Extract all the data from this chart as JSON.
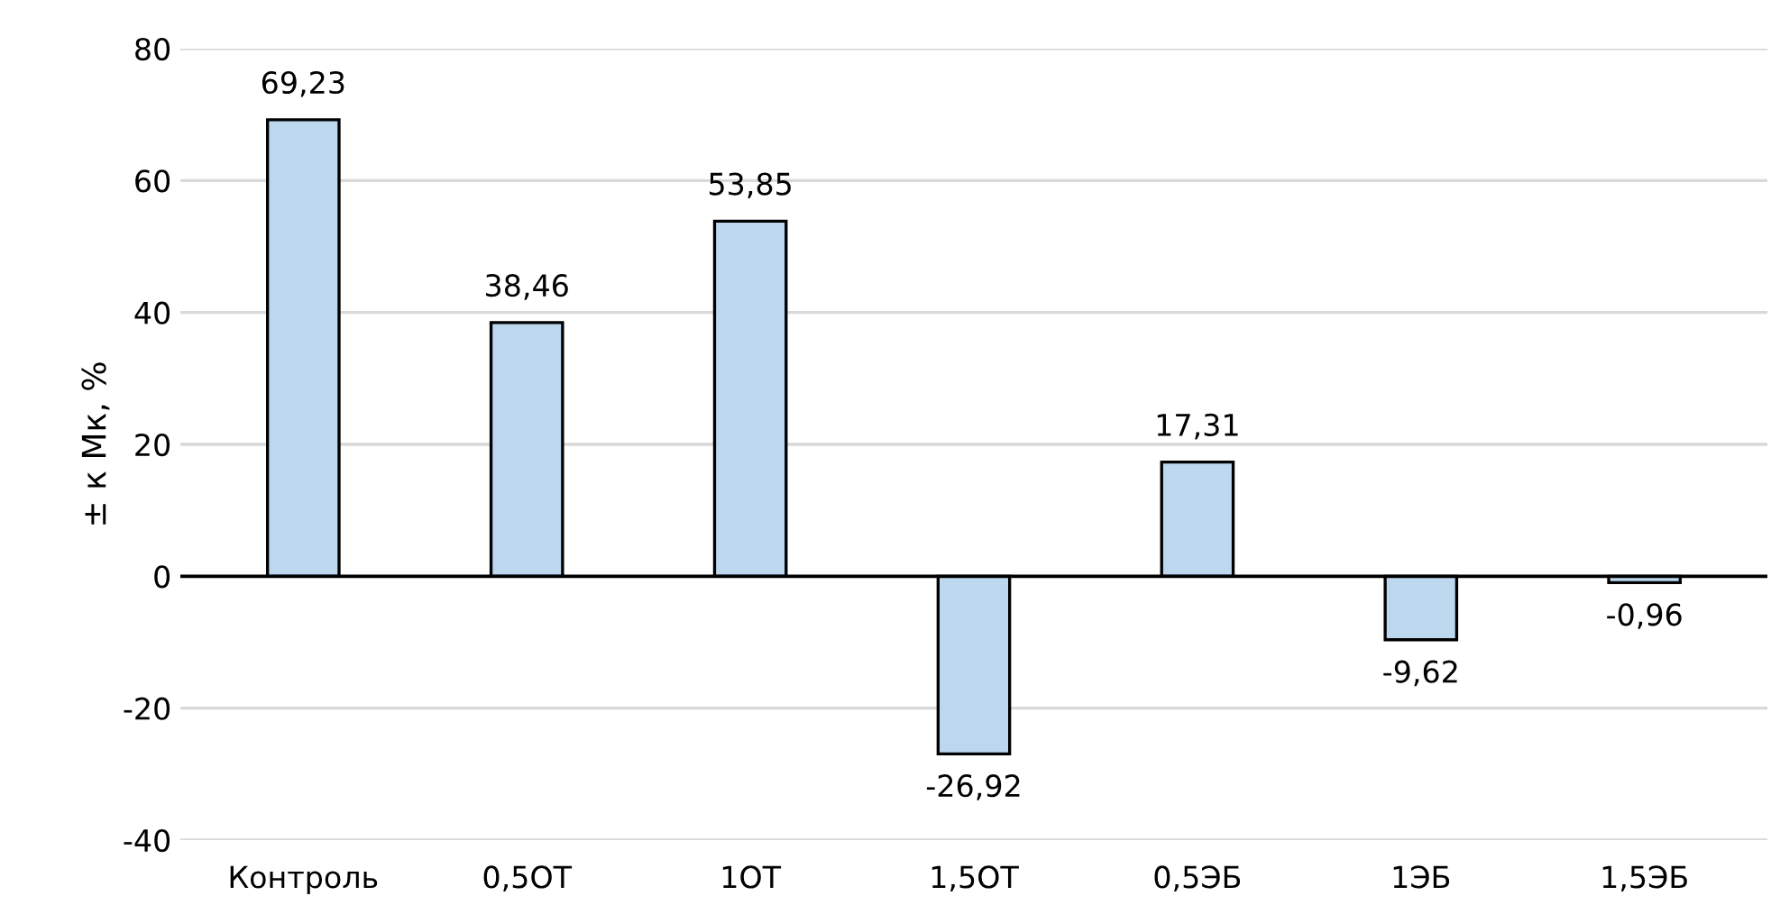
{
  "chart_data": {
    "type": "bar",
    "ylabel": "± к Мк, %",
    "categories": [
      "Контроль",
      "0,5ОТ",
      "1ОТ",
      "1,5ОТ",
      "0,5ЭБ",
      "1ЭБ",
      "1,5ЭБ"
    ],
    "values": [
      69.23,
      38.46,
      53.85,
      -26.92,
      17.31,
      -9.62,
      -0.96
    ],
    "value_labels": [
      "69,23",
      "38,46",
      "53,85",
      "-26,92",
      "17,31",
      "-9,62",
      "-0,96"
    ],
    "color": "#bdd7ee",
    "ylim": [
      -40,
      80
    ],
    "yticks": [
      -40,
      -20,
      0,
      20,
      40,
      60,
      80
    ],
    "grid": "y"
  }
}
